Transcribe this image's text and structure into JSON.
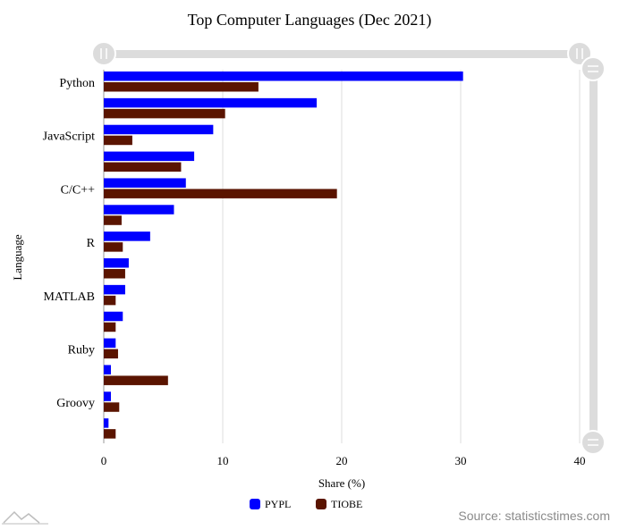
{
  "chart_data": {
    "type": "bar",
    "orientation": "horizontal",
    "title": "Top Computer Languages (Dec 2021)",
    "xlabel": "Share (%)",
    "ylabel": "Language",
    "xlim": [
      0,
      40
    ],
    "xticks": [
      0,
      10,
      20,
      30,
      40
    ],
    "categories": [
      "Python",
      "",
      "JavaScript",
      "",
      "C/C++",
      "",
      "R",
      "",
      "MATLAB",
      "",
      "Ruby",
      "",
      "Groovy",
      ""
    ],
    "series": [
      {
        "name": "PYPL",
        "color": "#0000ff",
        "values": [
          30.2,
          17.9,
          9.2,
          7.6,
          6.9,
          5.9,
          3.9,
          2.1,
          1.8,
          1.6,
          1.0,
          0.6,
          0.6,
          0.4
        ]
      },
      {
        "name": "TIOBE",
        "color": "#5a1400",
        "values": [
          13.0,
          10.2,
          2.4,
          6.5,
          19.6,
          1.5,
          1.6,
          1.8,
          1.0,
          1.0,
          1.2,
          5.4,
          1.3,
          1.0
        ]
      }
    ],
    "grid": true,
    "legend_position": "bottom-center"
  },
  "source_text": "Source: statisticstimes.com",
  "logo_icon": "mountain-logo-icon",
  "scrollbar_handle_icon": "drag-handle-icon"
}
